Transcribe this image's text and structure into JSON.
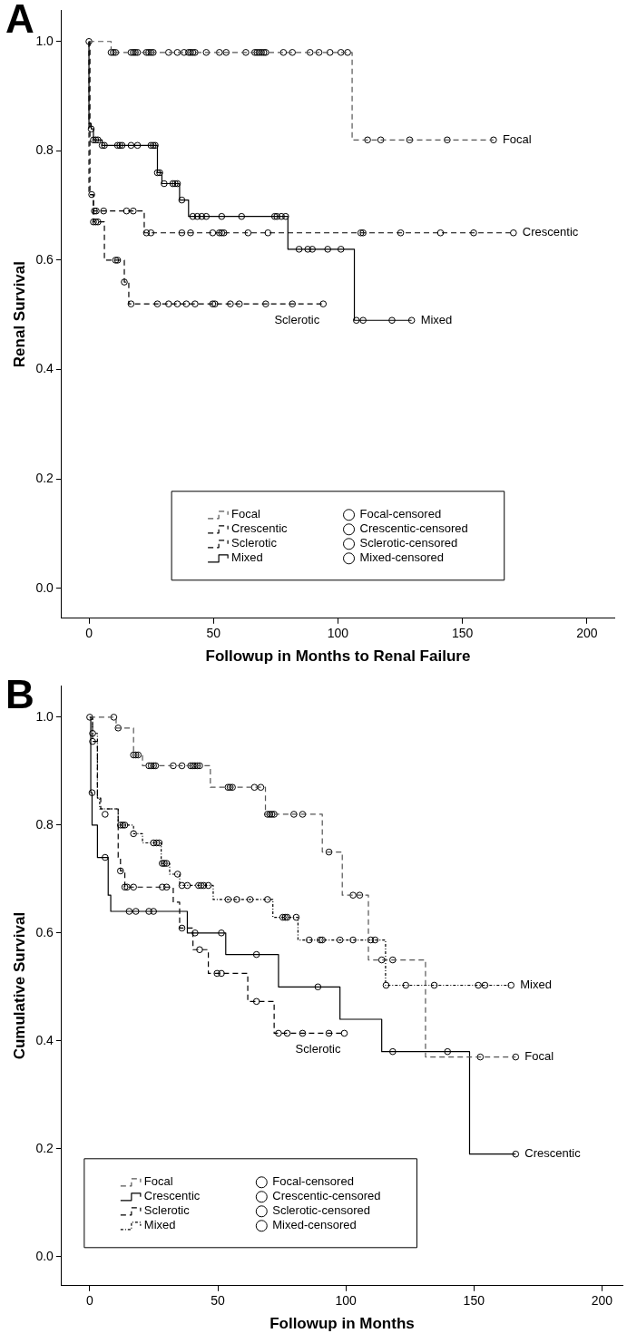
{
  "chart_data": [
    {
      "type": "step",
      "title": "A",
      "xlabel": "Followup in Months to Renal Failure",
      "ylabel": "Renal Survival",
      "xlim": [
        -11,
        211
      ],
      "xticks": [
        0,
        50,
        100,
        150,
        200
      ],
      "ylim": [
        -0.055,
        1.057
      ],
      "yticks": [
        {
          "value": 0,
          "label": "0.0"
        },
        {
          "value": 0.2,
          "label": "0.2"
        },
        {
          "value": 0.4,
          "label": "0.4"
        },
        {
          "value": 0.6,
          "label": "0.6"
        },
        {
          "value": 0.8,
          "label": "0.8"
        },
        {
          "value": 1,
          "label": "1.0"
        }
      ],
      "grid": false,
      "legend": "bottom",
      "series": [
        {
          "name": "Focal",
          "type": "step",
          "color": "#555555",
          "line_style": "dashed",
          "x": [
            0,
            8.9,
            105.7,
            162.5
          ],
          "values": [
            1,
            0.98,
            0.82,
            0.82
          ]
        },
        {
          "name": "Crescentic",
          "type": "step",
          "color": "#000000",
          "line_style": "dashed",
          "x": [
            0,
            0,
            1.8,
            22.2,
            170.5
          ],
          "values": [
            1,
            0.72,
            0.69,
            0.65,
            0.65
          ]
        },
        {
          "name": "Sclerotic",
          "type": "step",
          "color": "#000000",
          "line_style": "dashed",
          "x": [
            0,
            0.4,
            1.8,
            6.2,
            14.2,
            16,
            94.1
          ],
          "values": [
            1,
            0.72,
            0.67,
            0.6,
            0.56,
            0.52,
            0.52
          ]
        },
        {
          "name": "Mixed",
          "type": "step",
          "color": "#000000",
          "line_style": "solid",
          "x": [
            0,
            0,
            0.9,
            1.8,
            5.3,
            27.5,
            29.3,
            36.4,
            40,
            79.9,
            106.6,
            129.6
          ],
          "values": [
            1,
            0.85,
            0.84,
            0.82,
            0.81,
            0.76,
            0.74,
            0.71,
            0.68,
            0.62,
            0.49,
            0.49
          ]
        },
        {
          "name": "Focal-censored",
          "type": "scatter",
          "marker": "circle",
          "color": "#000000",
          "x": [
            0,
            8.9,
            9.8,
            10.7,
            16.9,
            17.8,
            18.6,
            19.5,
            23.1,
            24,
            24.9,
            25.8,
            32,
            35.5,
            38.2,
            40,
            40.8,
            41.7,
            42.6,
            47.1,
            52.4,
            55.1,
            63,
            66.6,
            67.5,
            68.4,
            69.3,
            70.2,
            71,
            78.1,
            81.7,
            88.8,
            92.4,
            96.8,
            101.2,
            103.9,
            111.9,
            117.2,
            128.8,
            143.9,
            162.5
          ],
          "values": [
            1,
            0.98,
            0.98,
            0.98,
            0.98,
            0.98,
            0.98,
            0.98,
            0.98,
            0.98,
            0.98,
            0.98,
            0.98,
            0.98,
            0.98,
            0.98,
            0.98,
            0.98,
            0.98,
            0.98,
            0.98,
            0.98,
            0.98,
            0.98,
            0.98,
            0.98,
            0.98,
            0.98,
            0.98,
            0.98,
            0.98,
            0.98,
            0.98,
            0.98,
            0.98,
            0.98,
            0.82,
            0.82,
            0.82,
            0.82,
            0.82
          ]
        },
        {
          "name": "Crescentic-censored",
          "type": "scatter",
          "marker": "circle",
          "color": "#000000",
          "x": [
            1.1,
            2.2,
            2.9,
            5.9,
            15.1,
            17.8,
            23.1,
            24.9,
            37.3,
            40.8,
            49.7,
            52.4,
            53.3,
            54.2,
            63.9,
            71.9,
            109.2,
            110.1,
            125.2,
            141.2,
            154.5,
            170.5
          ],
          "values": [
            0.72,
            0.69,
            0.69,
            0.69,
            0.69,
            0.69,
            0.65,
            0.65,
            0.65,
            0.65,
            0.65,
            0.65,
            0.65,
            0.65,
            0.65,
            0.65,
            0.65,
            0.65,
            0.65,
            0.65,
            0.65,
            0.65
          ]
        },
        {
          "name": "Sclerotic-censored",
          "type": "scatter",
          "marker": "circle",
          "color": "#000000",
          "x": [
            1.8,
            2.7,
            3.6,
            10.7,
            11.5,
            14.2,
            16.9,
            27.5,
            32,
            35.5,
            39.1,
            42.6,
            49.7,
            50.6,
            56.8,
            60.4,
            71,
            81.7,
            94.1
          ],
          "values": [
            0.67,
            0.67,
            0.67,
            0.6,
            0.6,
            0.56,
            0.52,
            0.52,
            0.52,
            0.52,
            0.52,
            0.52,
            0.52,
            0.52,
            0.52,
            0.52,
            0.52,
            0.52,
            0.52
          ]
        },
        {
          "name": "Mixed-censored",
          "type": "scatter",
          "marker": "circle",
          "color": "#000000",
          "x": [
            0.9,
            1.8,
            2.7,
            3.6,
            5.3,
            6.2,
            11.5,
            12.4,
            13.3,
            16.9,
            19.5,
            24.9,
            25.8,
            26.6,
            27.5,
            28.4,
            30.2,
            33.7,
            34.6,
            35.5,
            37.3,
            41.7,
            43.5,
            45.3,
            47.1,
            53.3,
            61.3,
            74.6,
            75.5,
            77.3,
            79,
            84.4,
            87.9,
            89.7,
            95.9,
            101.2,
            107.4,
            110.1,
            121.7,
            129.6
          ],
          "values": [
            0.84,
            0.82,
            0.82,
            0.82,
            0.81,
            0.81,
            0.81,
            0.81,
            0.81,
            0.81,
            0.81,
            0.81,
            0.81,
            0.81,
            0.76,
            0.76,
            0.74,
            0.74,
            0.74,
            0.74,
            0.71,
            0.68,
            0.68,
            0.68,
            0.68,
            0.68,
            0.68,
            0.68,
            0.68,
            0.68,
            0.68,
            0.62,
            0.62,
            0.62,
            0.62,
            0.62,
            0.49,
            0.49,
            0.49,
            0.49
          ]
        }
      ],
      "annotations": [
        "Focal",
        "Crescentic",
        "Sclerotic",
        "Mixed"
      ]
    },
    {
      "type": "step",
      "title": "B",
      "xlabel": "Followup in Months",
      "ylabel": "Cumulative Survival",
      "xlim": [
        -11,
        208
      ],
      "xticks": [
        0,
        50,
        100,
        150,
        200
      ],
      "ylim": [
        -0.054,
        1.058
      ],
      "yticks": [
        {
          "value": 0,
          "label": "0.0"
        },
        {
          "value": 0.2,
          "label": "0.2"
        },
        {
          "value": 0.4,
          "label": "0.4"
        },
        {
          "value": 0.6,
          "label": "0.6"
        },
        {
          "value": 0.8,
          "label": "0.8"
        },
        {
          "value": 1,
          "label": "1.0"
        }
      ],
      "grid": false,
      "legend": "bottom left",
      "series": [
        {
          "name": "Focal",
          "type": "step",
          "color": "#555555",
          "line_style": "dashed",
          "x": [
            0,
            10.3,
            17.1,
            20.6,
            47.1,
            68.6,
            90.8,
            98.6,
            108.8,
            131.1,
            166.3
          ],
          "values": [
            1,
            0.98,
            0.93,
            0.91,
            0.87,
            0.82,
            0.75,
            0.67,
            0.55,
            0.37,
            0.37
          ]
        },
        {
          "name": "Crescentic",
          "type": "step",
          "color": "#000000",
          "line_style": "solid",
          "x": [
            0,
            0.4,
            0.9,
            3,
            7.2,
            8.2,
            38.1,
            53.1,
            73.7,
            97.7,
            114,
            148.3,
            166.3
          ],
          "values": [
            1,
            0.86,
            0.8,
            0.74,
            0.67,
            0.64,
            0.6,
            0.56,
            0.5,
            0.44,
            0.38,
            0.19,
            0.19
          ]
        },
        {
          "name": "Sclerotic",
          "type": "step",
          "color": "#000000",
          "line_style": "dashed",
          "x": [
            0,
            1.1,
            3,
            4.3,
            11.1,
            12,
            13.7,
            32.6,
            35.1,
            40.3,
            46.3,
            61.7,
            72,
            99.4
          ],
          "values": [
            1,
            0.955,
            0.85,
            0.83,
            0.74,
            0.715,
            0.685,
            0.657,
            0.609,
            0.569,
            0.525,
            0.473,
            0.414,
            0.414
          ]
        },
        {
          "name": "Mixed",
          "type": "step",
          "color": "#000000",
          "line_style": "dotted",
          "x": [
            0,
            1.1,
            3,
            3.9,
            11.1,
            17.1,
            20.6,
            27.9,
            31.2,
            35.1,
            48.2,
            71.5,
            81.3,
            115.5,
            164.5
          ],
          "values": [
            1,
            0.97,
            0.85,
            0.83,
            0.8,
            0.784,
            0.767,
            0.729,
            0.709,
            0.688,
            0.662,
            0.629,
            0.587,
            0.503,
            0.503
          ]
        },
        {
          "name": "Focal-censored",
          "type": "scatter",
          "marker": "circle",
          "color": "#000000",
          "x": [
            0,
            9.4,
            11.1,
            17.1,
            18,
            18.9,
            23.1,
            24,
            24.9,
            25.7,
            32.6,
            36,
            39.4,
            40.3,
            41.1,
            42,
            42.9,
            54,
            54.8,
            55.7,
            64.3,
            66.8,
            69.4,
            70.3,
            71.1,
            72,
            79.7,
            83.1,
            93.4,
            102.8,
            105.4,
            114,
            118.3,
            152.5,
            166.3
          ],
          "values": [
            1,
            1,
            0.98,
            0.93,
            0.93,
            0.93,
            0.91,
            0.91,
            0.91,
            0.91,
            0.91,
            0.91,
            0.91,
            0.91,
            0.91,
            0.91,
            0.91,
            0.87,
            0.87,
            0.87,
            0.87,
            0.87,
            0.82,
            0.82,
            0.82,
            0.82,
            0.82,
            0.82,
            0.75,
            0.67,
            0.67,
            0.55,
            0.55,
            0.37,
            0.37
          ]
        },
        {
          "name": "Crescentic-censored",
          "type": "scatter",
          "marker": "circle",
          "color": "#000000",
          "x": [
            0.9,
            6,
            15.4,
            18,
            23.1,
            24.9,
            41.1,
            51.4,
            65.1,
            89.1,
            118.3,
            139.7,
            166.3
          ],
          "values": [
            0.86,
            0.74,
            0.64,
            0.64,
            0.64,
            0.64,
            0.6,
            0.6,
            0.56,
            0.5,
            0.38,
            0.38,
            0.19
          ]
        },
        {
          "name": "Sclerotic-censored",
          "type": "scatter",
          "marker": "circle",
          "color": "#000000",
          "x": [
            1.1,
            12,
            13.7,
            14.6,
            17.1,
            28.3,
            30,
            36,
            42.9,
            49.7,
            51.4,
            65.1,
            73.7,
            77.1,
            83.1,
            93.4,
            99.4
          ],
          "values": [
            0.955,
            0.715,
            0.685,
            0.685,
            0.685,
            0.685,
            0.685,
            0.609,
            0.569,
            0.525,
            0.525,
            0.473,
            0.414,
            0.414,
            0.414,
            0.414,
            0.414
          ]
        },
        {
          "name": "Mixed-censored",
          "type": "scatter",
          "marker": "circle",
          "color": "#000000",
          "x": [
            1.1,
            6,
            12,
            12.9,
            13.7,
            17.1,
            24.9,
            26.1,
            27.1,
            28.3,
            29.1,
            30,
            34.3,
            36,
            38.1,
            42.5,
            43.5,
            44.5,
            46.3,
            54,
            57.4,
            62.6,
            69.4,
            75.4,
            76.3,
            77.1,
            80.6,
            85.7,
            90,
            90.8,
            97.7,
            102.8,
            109.7,
            111.4,
            115.7,
            123.4,
            134.5,
            151.7,
            154.3,
            164.5
          ],
          "values": [
            0.97,
            0.82,
            0.8,
            0.8,
            0.8,
            0.784,
            0.767,
            0.767,
            0.767,
            0.729,
            0.729,
            0.729,
            0.709,
            0.688,
            0.688,
            0.688,
            0.688,
            0.688,
            0.688,
            0.662,
            0.662,
            0.662,
            0.662,
            0.629,
            0.629,
            0.629,
            0.629,
            0.587,
            0.587,
            0.587,
            0.587,
            0.587,
            0.587,
            0.587,
            0.503,
            0.503,
            0.503,
            0.503,
            0.503,
            0.503
          ]
        }
      ],
      "annotations": [
        "Focal",
        "Crescentic",
        "Sclerotic",
        "Mixed"
      ]
    }
  ]
}
